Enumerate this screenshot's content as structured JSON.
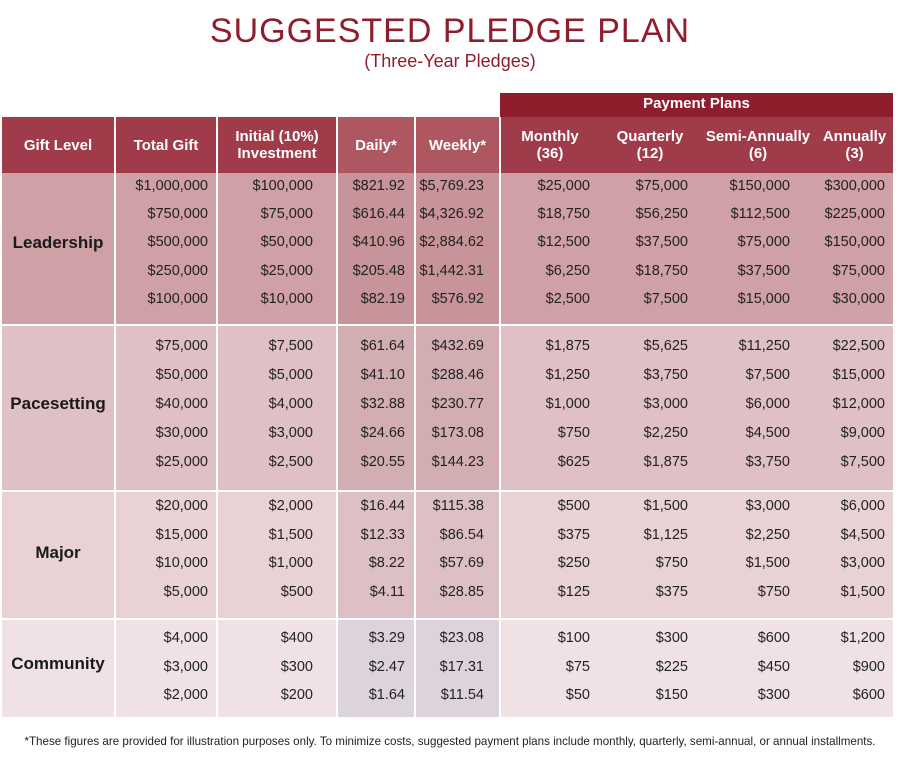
{
  "title": "SUGGESTED PLEDGE PLAN",
  "subtitle": "(Three-Year Pledges)",
  "payment_plans_label": "Payment Plans",
  "headers": {
    "gift_level": "Gift Level",
    "total_gift": "Total Gift",
    "initial_1": "Initial (10%)",
    "initial_2": "Investment",
    "daily": "Daily*",
    "weekly": "Weekly*",
    "monthly_1": "Monthly",
    "monthly_2": "(36)",
    "quarterly_1": "Quarterly",
    "quarterly_2": "(12)",
    "semi_1": "Semi-Annually",
    "semi_2": "(6)",
    "annually_1": "Annually",
    "annually_2": "(3)"
  },
  "groups": [
    {
      "name": "Leadership",
      "rows": [
        [
          "$1,000,000",
          "$100,000",
          "$821.92",
          "$5,769.23",
          "$25,000",
          "$75,000",
          "$150,000",
          "$300,000"
        ],
        [
          "$750,000",
          "$75,000",
          "$616.44",
          "$4,326.92",
          "$18,750",
          "$56,250",
          "$112,500",
          "$225,000"
        ],
        [
          "$500,000",
          "$50,000",
          "$410.96",
          "$2,884.62",
          "$12,500",
          "$37,500",
          "$75,000",
          "$150,000"
        ],
        [
          "$250,000",
          "$25,000",
          "$205.48",
          "$1,442.31",
          "$6,250",
          "$18,750",
          "$37,500",
          "$75,000"
        ],
        [
          "$100,000",
          "$10,000",
          "$82.19",
          "$576.92",
          "$2,500",
          "$7,500",
          "$15,000",
          "$30,000"
        ]
      ]
    },
    {
      "name": "Pacesetting",
      "rows": [
        [
          "$75,000",
          "$7,500",
          "$61.64",
          "$432.69",
          "$1,875",
          "$5,625",
          "$11,250",
          "$22,500"
        ],
        [
          "$50,000",
          "$5,000",
          "$41.10",
          "$288.46",
          "$1,250",
          "$3,750",
          "$7,500",
          "$15,000"
        ],
        [
          "$40,000",
          "$4,000",
          "$32.88",
          "$230.77",
          "$1,000",
          "$3,000",
          "$6,000",
          "$12,000"
        ],
        [
          "$30,000",
          "$3,000",
          "$24.66",
          "$173.08",
          "$750",
          "$2,250",
          "$4,500",
          "$9,000"
        ],
        [
          "$25,000",
          "$2,500",
          "$20.55",
          "$144.23",
          "$625",
          "$1,875",
          "$3,750",
          "$7,500"
        ]
      ]
    },
    {
      "name": "Major",
      "rows": [
        [
          "$20,000",
          "$2,000",
          "$16.44",
          "$115.38",
          "$500",
          "$1,500",
          "$3,000",
          "$6,000"
        ],
        [
          "$15,000",
          "$1,500",
          "$12.33",
          "$86.54",
          "$375",
          "$1,125",
          "$2,250",
          "$4,500"
        ],
        [
          "$10,000",
          "$1,000",
          "$8.22",
          "$57.69",
          "$250",
          "$750",
          "$1,500",
          "$3,000"
        ],
        [
          "$5,000",
          "$500",
          "$4.11",
          "$28.85",
          "$125",
          "$375",
          "$750",
          "$1,500"
        ]
      ]
    },
    {
      "name": "Community",
      "rows": [
        [
          "$4,000",
          "$400",
          "$3.29",
          "$23.08",
          "$100",
          "$300",
          "$600",
          "$1,200"
        ],
        [
          "$3,000",
          "$300",
          "$2.47",
          "$17.31",
          "$75",
          "$225",
          "$450",
          "$900"
        ],
        [
          "$2,000",
          "$200",
          "$1.64",
          "$11.54",
          "$50",
          "$150",
          "$300",
          "$600"
        ]
      ]
    }
  ],
  "footnote": "*These figures are provided for illustration purposes only. To minimize costs, suggested payment plans include monthly, quarterly, semi-annual, or annual installments."
}
